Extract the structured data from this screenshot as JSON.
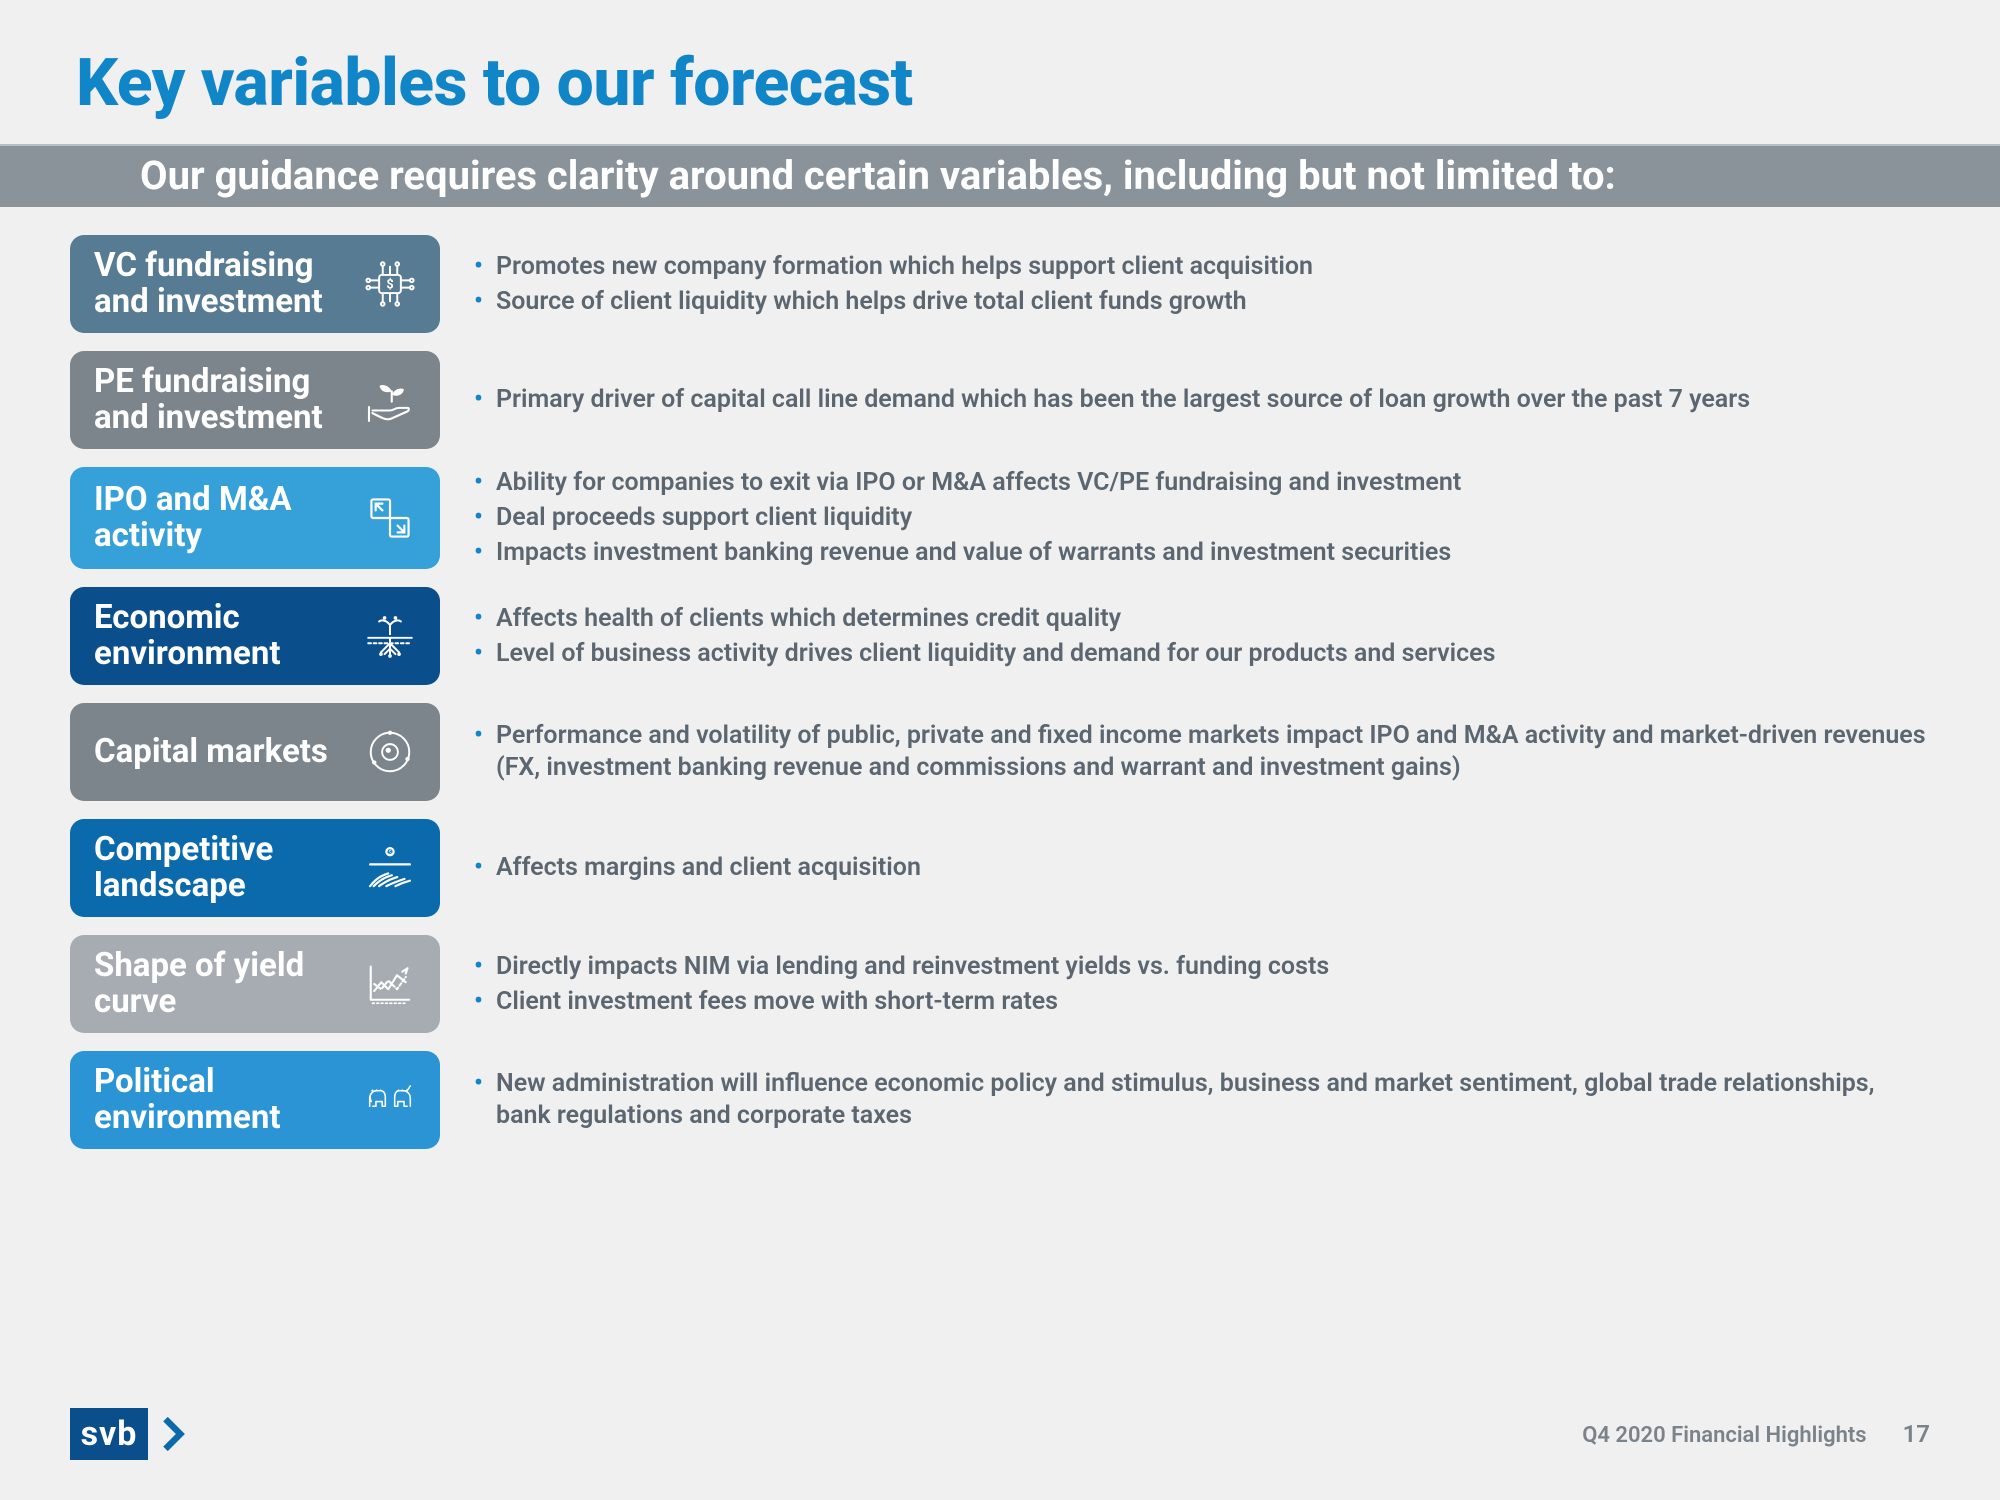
{
  "colors": {
    "title": "#1086c8",
    "subtitle_bar": "#8a929a",
    "subtitle_text": "#ffffff",
    "body_text": "#5c6670",
    "bullet_marker": "#1086c8",
    "logo_bg": "#0a4e8c",
    "footer_text": "#7a828a"
  },
  "title": "Key variables to our forecast",
  "subtitle": "Our guidance requires clarity around certain variables, including but not limited to:",
  "rows": [
    {
      "label": "VC fundraising and investment",
      "pill_color": "#567b92",
      "icon": "chip-dollar",
      "bullets": [
        "Promotes new company formation which helps support client acquisition",
        "Source of client liquidity which helps drive total client funds growth"
      ]
    },
    {
      "label": "PE fundraising and investment",
      "pill_color": "#7c858c",
      "icon": "seedling-hand",
      "bullets": [
        "Primary driver of capital call line demand which has been the largest source of loan growth over the past 7 years"
      ]
    },
    {
      "label": "IPO and M&A activity",
      "pill_color": "#36a0d9",
      "icon": "exchange-box",
      "bullets": [
        "Ability for companies to exit via IPO or M&A affects VC/PE fundraising and investment",
        "Deal proceeds support client liquidity",
        "Impacts investment banking revenue and value of warrants and investment securities"
      ]
    },
    {
      "label": "Economic environment",
      "pill_color": "#0a4e8c",
      "icon": "roots",
      "bullets": [
        "Affects health of clients which determines credit quality",
        "Level of business activity drives client liquidity and demand for our products and services"
      ]
    },
    {
      "label": "Capital markets",
      "pill_color": "#7c858c",
      "icon": "orbit-globe",
      "bullets": [
        "Performance and volatility of public, private and fixed income markets impact IPO and M&A activity and market-driven revenues (FX, investment banking revenue and commissions and warrant and investment gains)"
      ]
    },
    {
      "label": "Competitive landscape",
      "pill_color": "#0a6aac",
      "icon": "landscape-rays",
      "bullets": [
        "Affects margins and client acquisition"
      ]
    },
    {
      "label": "Shape of yield curve",
      "pill_color": "#a6acb1",
      "icon": "line-chart",
      "bullets": [
        "Directly impacts NIM via lending and reinvestment yields vs. funding costs",
        "Client investment fees move with short-term rates"
      ]
    },
    {
      "label": "Political environment",
      "pill_color": "#2a94d4",
      "icon": "elephant-donkey",
      "bullets": [
        "New administration will influence economic policy and stimulus, business and market sentiment, global trade relationships, bank regulations and corporate taxes"
      ]
    }
  ],
  "footer": {
    "logo_text": "svb",
    "doc_title": "Q4 2020 Financial Highlights",
    "page": "17"
  }
}
